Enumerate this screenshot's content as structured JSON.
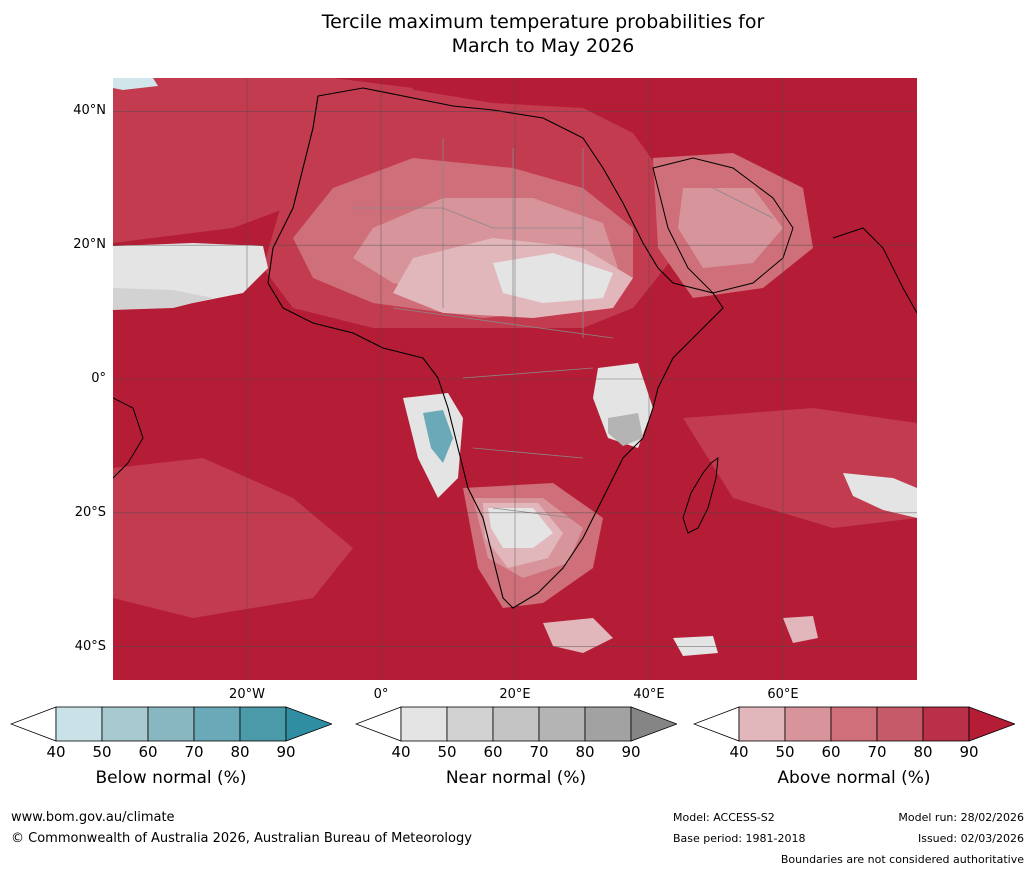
{
  "title": {
    "line1": "Tercile maximum temperature probabilities for",
    "line2": "March to May 2026"
  },
  "map": {
    "latitude_labels": [
      "40°N",
      "20°N",
      "0°",
      "20°S",
      "40°S"
    ],
    "longitude_labels": [
      "20°W",
      "0°",
      "20°E",
      "40°E",
      "60°E"
    ],
    "extent": {
      "lon_min": -40,
      "lon_max": 80,
      "lat_min": -45,
      "lat_max": 45
    },
    "colors": {
      "above_90": "#b51c35",
      "above_80": "#c23b4f",
      "above_70": "#cf6f79",
      "above_60": "#d8949b",
      "above_50": "#e2b7bc",
      "near_50": "#e4e4e4",
      "below_40": "#d0e6ea",
      "below_70": "#6aaab8",
      "gridline": "#4a4a4a",
      "border": "#888888",
      "coast": "#000000"
    }
  },
  "colorbars": {
    "below": {
      "title": "Below normal (%)",
      "ticks": [
        "40",
        "50",
        "60",
        "70",
        "80",
        "90"
      ],
      "colors": [
        "#ffffff",
        "#c9e2e8",
        "#a8c9cf",
        "#88b6c1",
        "#6aaab8",
        "#4a9aaa",
        "#2f8ea1"
      ]
    },
    "near": {
      "title": "Near normal (%)",
      "ticks": [
        "40",
        "50",
        "60",
        "70",
        "80",
        "90"
      ],
      "colors": [
        "#ffffff",
        "#e4e4e4",
        "#d2d2d2",
        "#c4c4c4",
        "#b4b4b4",
        "#a2a2a2",
        "#858585"
      ]
    },
    "above": {
      "title": "Above normal (%)",
      "ticks": [
        "40",
        "50",
        "60",
        "70",
        "80",
        "90"
      ],
      "colors": [
        "#ffffff",
        "#e2b7bc",
        "#d8949b",
        "#cf6f79",
        "#c55a69",
        "#ba3049",
        "#b51c35"
      ]
    }
  },
  "footer": {
    "url": "www.bom.gov.au/climate",
    "copyright": "© Commonwealth of Australia 2026, Australian Bureau of Meteorology",
    "model": "Model: ACCESS-S2",
    "base_period": "Base period: 1981-2018",
    "model_run": "Model run: 28/02/2026",
    "issued": "Issued: 02/03/2026",
    "disclaimer": "Boundaries are not considered authoritative"
  }
}
